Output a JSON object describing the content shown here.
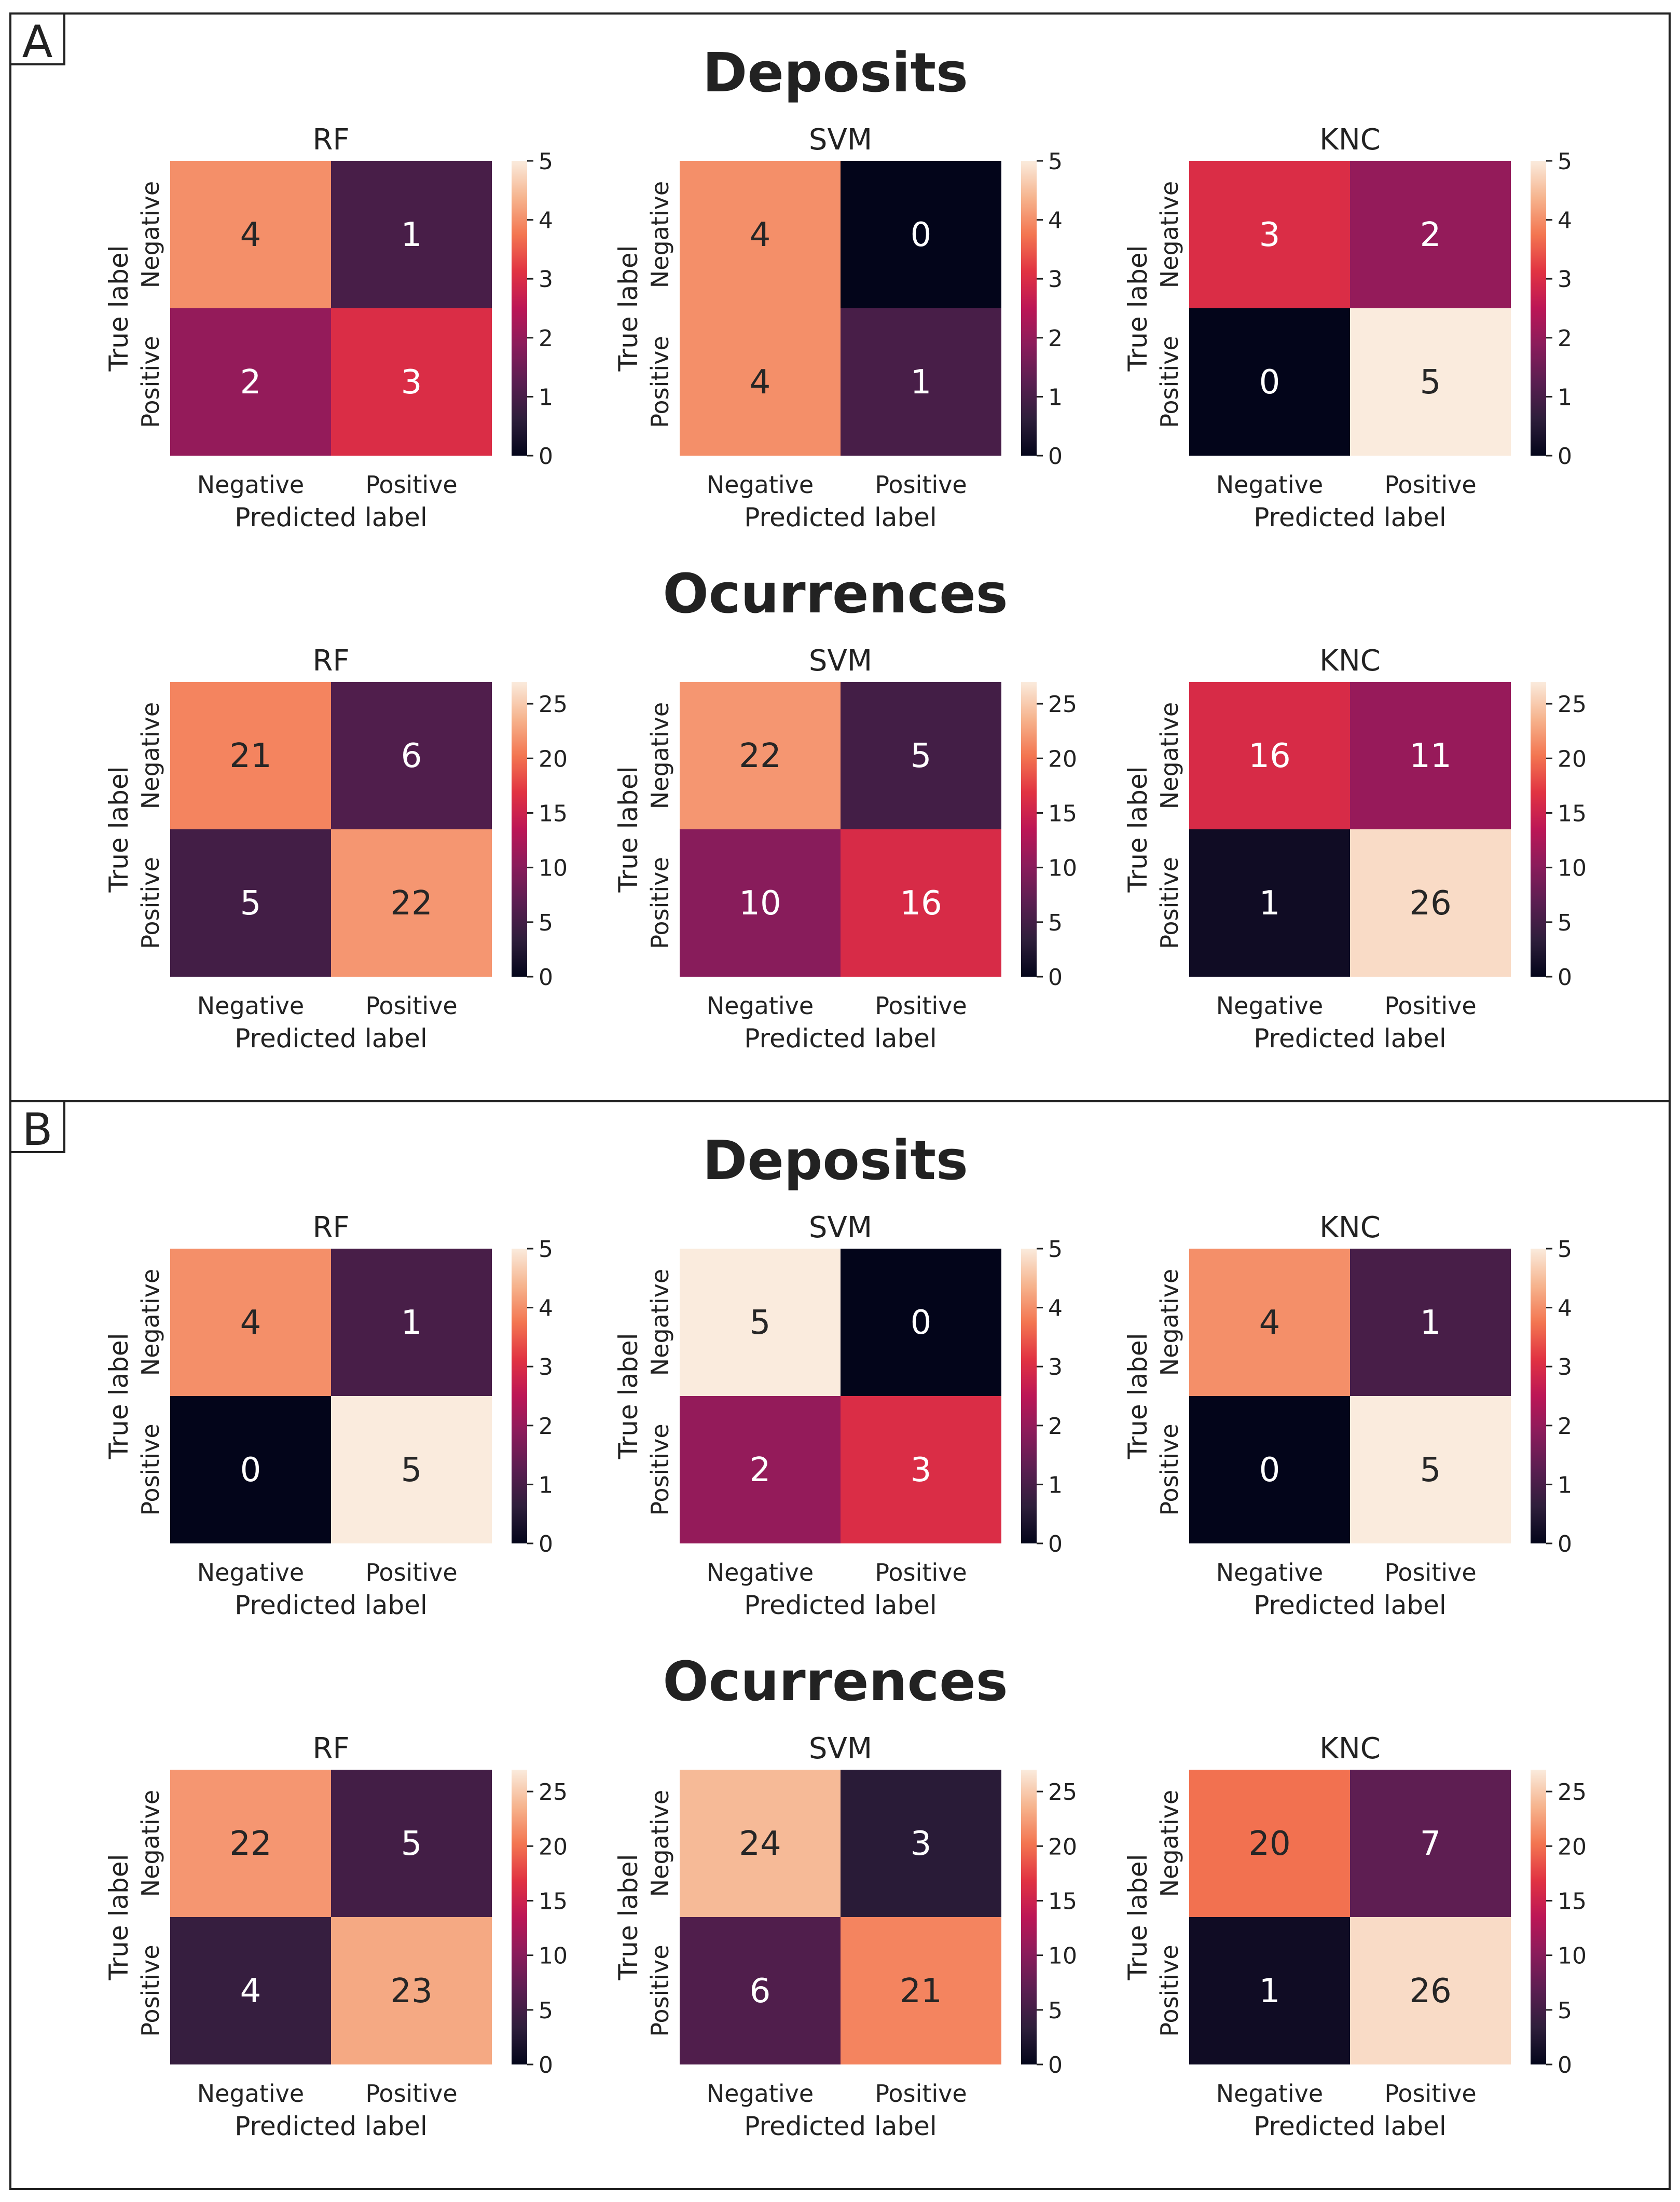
{
  "figure": {
    "panels": [
      {
        "tag": "A",
        "groups": [
          {
            "title": "Deposits",
            "matrices": [
              {
                "name": "RF",
                "values": [
                  [
                    4,
                    1
                  ],
                  [
                    2,
                    3
                  ]
                ]
              },
              {
                "name": "SVM",
                "values": [
                  [
                    4,
                    0
                  ],
                  [
                    4,
                    1
                  ]
                ]
              },
              {
                "name": "KNC",
                "values": [
                  [
                    3,
                    2
                  ],
                  [
                    0,
                    5
                  ]
                ]
              }
            ]
          },
          {
            "title": "Ocurrences",
            "matrices": [
              {
                "name": "RF",
                "values": [
                  [
                    21,
                    6
                  ],
                  [
                    5,
                    22
                  ]
                ]
              },
              {
                "name": "SVM",
                "values": [
                  [
                    22,
                    5
                  ],
                  [
                    10,
                    16
                  ]
                ]
              },
              {
                "name": "KNC",
                "values": [
                  [
                    16,
                    11
                  ],
                  [
                    1,
                    26
                  ]
                ]
              }
            ]
          }
        ]
      },
      {
        "tag": "B",
        "groups": [
          {
            "title": "Deposits",
            "matrices": [
              {
                "name": "RF",
                "values": [
                  [
                    4,
                    1
                  ],
                  [
                    0,
                    5
                  ]
                ]
              },
              {
                "name": "SVM",
                "values": [
                  [
                    5,
                    0
                  ],
                  [
                    2,
                    3
                  ]
                ]
              },
              {
                "name": "KNC",
                "values": [
                  [
                    4,
                    1
                  ],
                  [
                    0,
                    5
                  ]
                ]
              }
            ]
          },
          {
            "title": "Ocurrences",
            "matrices": [
              {
                "name": "RF",
                "values": [
                  [
                    22,
                    5
                  ],
                  [
                    4,
                    23
                  ]
                ]
              },
              {
                "name": "SVM",
                "values": [
                  [
                    24,
                    3
                  ],
                  [
                    6,
                    21
                  ]
                ]
              },
              {
                "name": "KNC",
                "values": [
                  [
                    20,
                    7
                  ],
                  [
                    1,
                    26
                  ]
                ]
              }
            ]
          }
        ]
      }
    ]
  },
  "chart_data": {
    "type": "heatmap",
    "colormap": "rocket",
    "row_labels": [
      "Negative",
      "Positive"
    ],
    "col_labels": [
      "Negative",
      "Positive"
    ],
    "xlabel": "Predicted label",
    "ylabel": "True label",
    "colorbars": {
      "Deposits": {
        "range": [
          0,
          5
        ],
        "ticks": [
          "0",
          "1",
          "2",
          "3",
          "4",
          "5"
        ]
      },
      "Ocurrences": {
        "range": [
          0,
          27
        ],
        "ticks": [
          "0",
          "5",
          "10",
          "15",
          "20",
          "25"
        ]
      }
    },
    "panels": [
      {
        "panel": "A",
        "group": "Deposits",
        "model": "RF",
        "matrix": [
          [
            4,
            1
          ],
          [
            2,
            3
          ]
        ]
      },
      {
        "panel": "A",
        "group": "Deposits",
        "model": "SVM",
        "matrix": [
          [
            4,
            0
          ],
          [
            4,
            1
          ]
        ]
      },
      {
        "panel": "A",
        "group": "Deposits",
        "model": "KNC",
        "matrix": [
          [
            3,
            2
          ],
          [
            0,
            5
          ]
        ]
      },
      {
        "panel": "A",
        "group": "Ocurrences",
        "model": "RF",
        "matrix": [
          [
            21,
            6
          ],
          [
            5,
            22
          ]
        ]
      },
      {
        "panel": "A",
        "group": "Ocurrences",
        "model": "SVM",
        "matrix": [
          [
            22,
            5
          ],
          [
            10,
            16
          ]
        ]
      },
      {
        "panel": "A",
        "group": "Ocurrences",
        "model": "KNC",
        "matrix": [
          [
            16,
            11
          ],
          [
            1,
            26
          ]
        ]
      },
      {
        "panel": "B",
        "group": "Deposits",
        "model": "RF",
        "matrix": [
          [
            4,
            1
          ],
          [
            0,
            5
          ]
        ]
      },
      {
        "panel": "B",
        "group": "Deposits",
        "model": "SVM",
        "matrix": [
          [
            5,
            0
          ],
          [
            2,
            3
          ]
        ]
      },
      {
        "panel": "B",
        "group": "Deposits",
        "model": "KNC",
        "matrix": [
          [
            4,
            1
          ],
          [
            0,
            5
          ]
        ]
      },
      {
        "panel": "B",
        "group": "Ocurrences",
        "model": "RF",
        "matrix": [
          [
            22,
            5
          ],
          [
            4,
            23
          ]
        ]
      },
      {
        "panel": "B",
        "group": "Ocurrences",
        "model": "SVM",
        "matrix": [
          [
            24,
            3
          ],
          [
            6,
            21
          ]
        ]
      },
      {
        "panel": "B",
        "group": "Ocurrences",
        "model": "KNC",
        "matrix": [
          [
            20,
            7
          ],
          [
            1,
            26
          ]
        ]
      }
    ]
  }
}
